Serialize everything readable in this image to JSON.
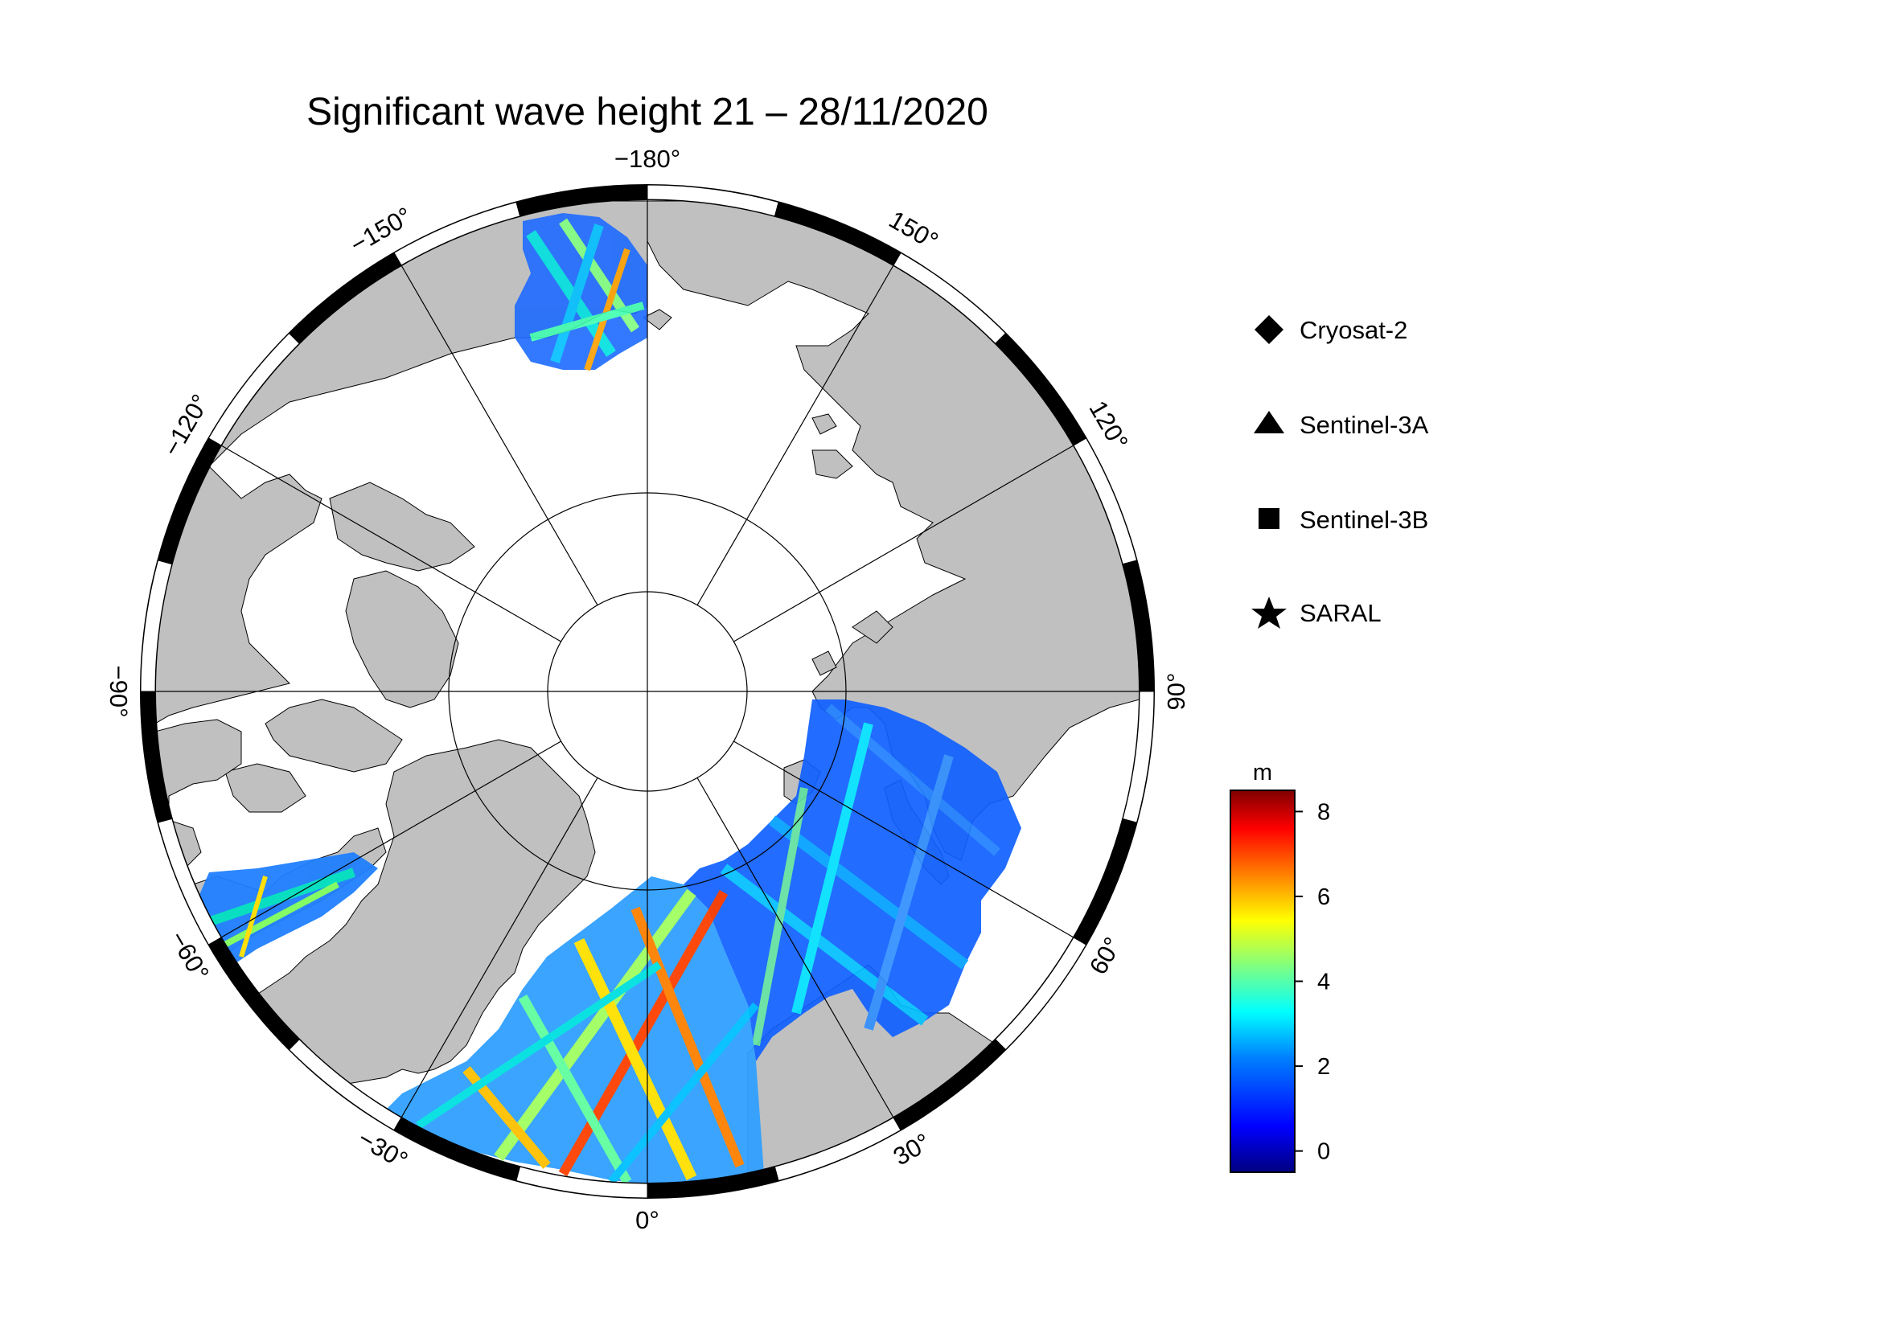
{
  "title": "Significant wave height 21 – 28/11/2020",
  "map": {
    "projection": "north-polar-stereographic",
    "land_color": "#c0c0c0",
    "ocean_color": "#ffffff",
    "graticule_color": "#000000",
    "longitude_labels": [
      {
        "lon": 0,
        "text": "0°"
      },
      {
        "lon": 30,
        "text": "30°"
      },
      {
        "lon": 60,
        "text": "60°"
      },
      {
        "lon": 90,
        "text": "90°"
      },
      {
        "lon": 120,
        "text": "120°"
      },
      {
        "lon": 150,
        "text": "150°"
      },
      {
        "lon": 180,
        "text": "−180°"
      },
      {
        "lon": -150,
        "text": "−150°"
      },
      {
        "lon": -120,
        "text": "−120°"
      },
      {
        "lon": -90,
        "text": "−90°"
      },
      {
        "lon": -60,
        "text": "−60°"
      },
      {
        "lon": -30,
        "text": "−30°"
      }
    ],
    "latitude_circles": [
      70,
      80
    ]
  },
  "legend": {
    "items": [
      {
        "marker": "diamond",
        "label": "Cryosat-2"
      },
      {
        "marker": "triangle",
        "label": "Sentinel-3A"
      },
      {
        "marker": "square",
        "label": "Sentinel-3B"
      },
      {
        "marker": "star",
        "label": "SARAL"
      }
    ]
  },
  "colorbar": {
    "unit": "m",
    "min": -0.5,
    "max": 8.5,
    "ticks": [
      "0",
      "2",
      "4",
      "6",
      "8"
    ],
    "colormap": [
      "#000080",
      "#0000ff",
      "#0080ff",
      "#00ffff",
      "#80ff80",
      "#ffff00",
      "#ff8000",
      "#ff0000",
      "#800000"
    ]
  }
}
